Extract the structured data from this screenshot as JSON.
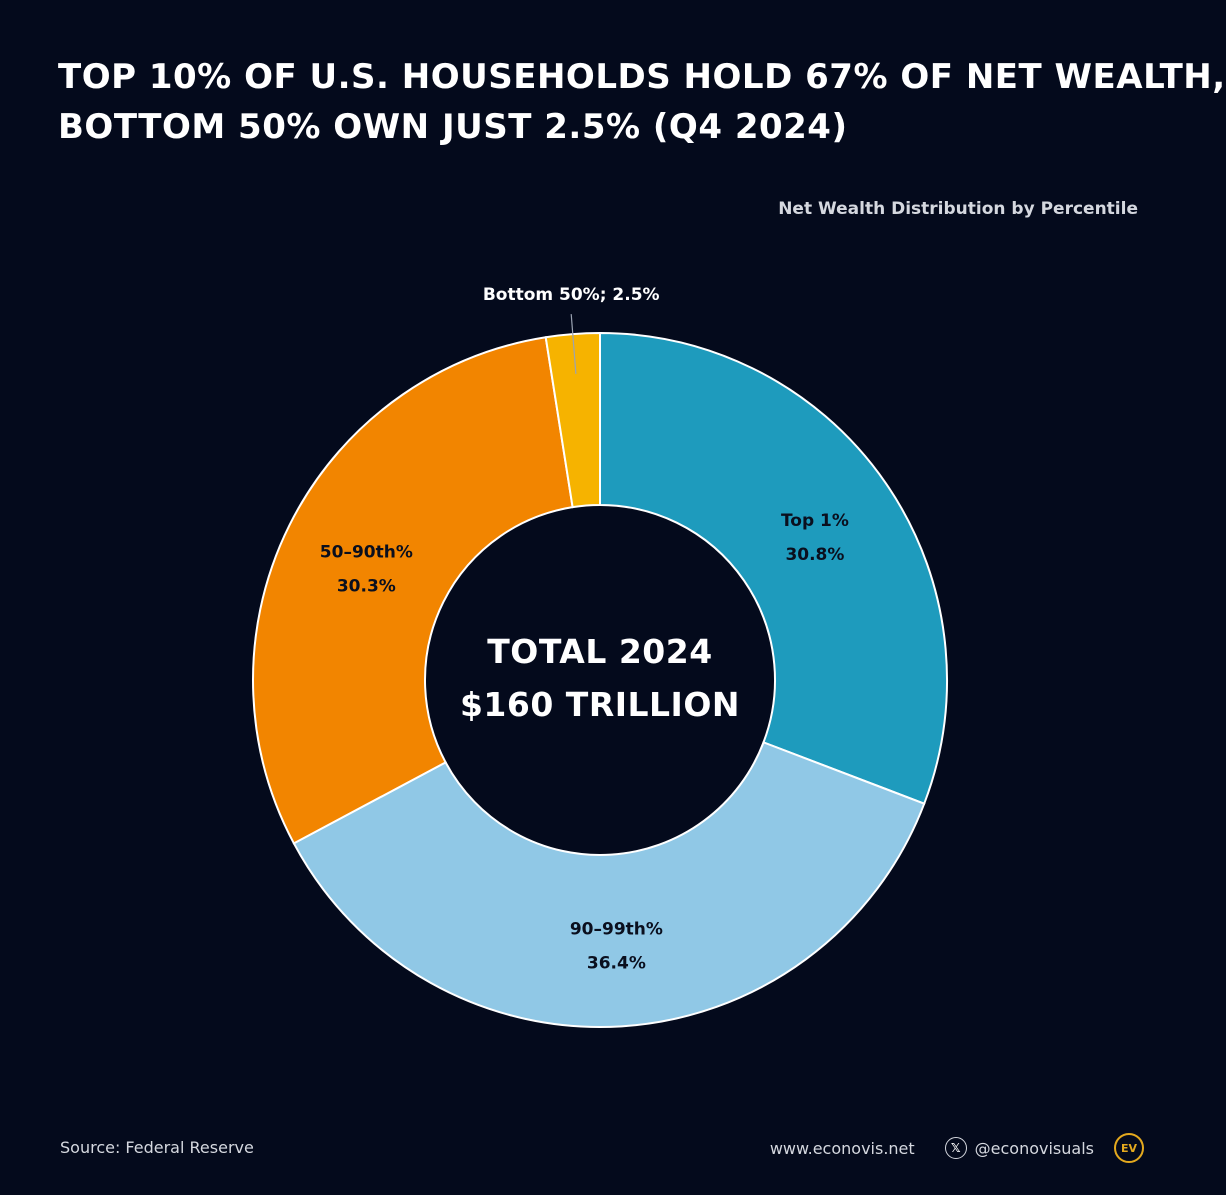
{
  "header": {
    "title_line1": "Top 10% of U.S. Households hold 67% of Net Wealth,",
    "title_line2": "Bottom 50% own just 2.5% (Q4 2024)",
    "subtitle": "Net Wealth Distribution by Percentile"
  },
  "chart_data": {
    "type": "pie",
    "donut": true,
    "title": "Top 10% of U.S. Households hold 67% of Net Wealth, Bottom 50% own just 2.5% (Q4 2024)",
    "subtitle": "Net Wealth Distribution by Percentile",
    "unit": "%",
    "slices": [
      {
        "label": "Top 1%",
        "value": 30.8,
        "value_label": "30.8%",
        "color": "#1e9bbd"
      },
      {
        "label": "90–99th%",
        "value": 36.4,
        "value_label": "36.4%",
        "color": "#90c8e6"
      },
      {
        "label": "50–90th%",
        "value": 30.3,
        "value_label": "30.3%",
        "color": "#f28500"
      },
      {
        "label": "Bottom 50%",
        "value": 2.5,
        "value_label": "Bottom 50%; 2.5%",
        "color": "#f6b300"
      }
    ],
    "center_label_line1": "Total 2024",
    "center_label_line2": "$160 Trillion"
  },
  "colors": {
    "background": "#040a1c",
    "slice_border": "#ffffff",
    "text": "#ffffff",
    "muted_text": "#d5d8df",
    "logo": "#e4a91e"
  },
  "footer": {
    "source": "Source: Federal Reserve",
    "website": "www.econovis.net",
    "social_icon": "x-logo-icon",
    "social_glyph": "𝕏",
    "handle": "@econovisuals",
    "logo_text": "EV"
  }
}
